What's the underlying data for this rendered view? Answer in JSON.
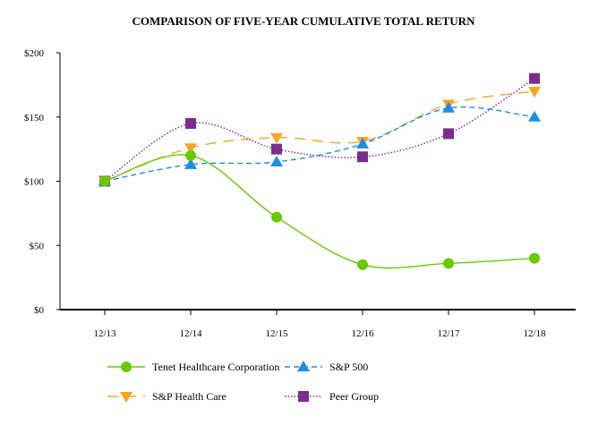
{
  "chart_data": {
    "type": "line",
    "title": "COMPARISON OF FIVE-YEAR CUMULATIVE TOTAL RETURN",
    "xlabel": "",
    "ylabel": "",
    "categories": [
      "12/13",
      "12/14",
      "12/15",
      "12/16",
      "12/17",
      "12/18"
    ],
    "ylim": [
      0,
      200
    ],
    "yticks": [
      0,
      50,
      100,
      150,
      200
    ],
    "ytick_labels": [
      "$0",
      "$50",
      "$100",
      "$150",
      "$200"
    ],
    "grid": false,
    "legend_placement": "bottom",
    "series": [
      {
        "name": "Tenet Healthcare Corporation",
        "values": [
          100,
          120,
          72,
          35,
          36,
          40
        ],
        "color": "#66cc00",
        "marker": "circle",
        "dash": "solid"
      },
      {
        "name": "S&P 500",
        "values": [
          100,
          113,
          115,
          129,
          157,
          150
        ],
        "color": "#1a8fe6",
        "marker": "triangle-up",
        "dash": "dashed"
      },
      {
        "name": "S&P Health Care",
        "values": [
          100,
          126,
          134,
          131,
          160,
          170
        ],
        "color": "#f5a623",
        "marker": "triangle-down",
        "dash": "long-dashed"
      },
      {
        "name": "Peer Group",
        "values": [
          100,
          145,
          125,
          119,
          137,
          180
        ],
        "color": "#7b2d8e",
        "marker": "square",
        "dash": "dotted"
      }
    ]
  }
}
